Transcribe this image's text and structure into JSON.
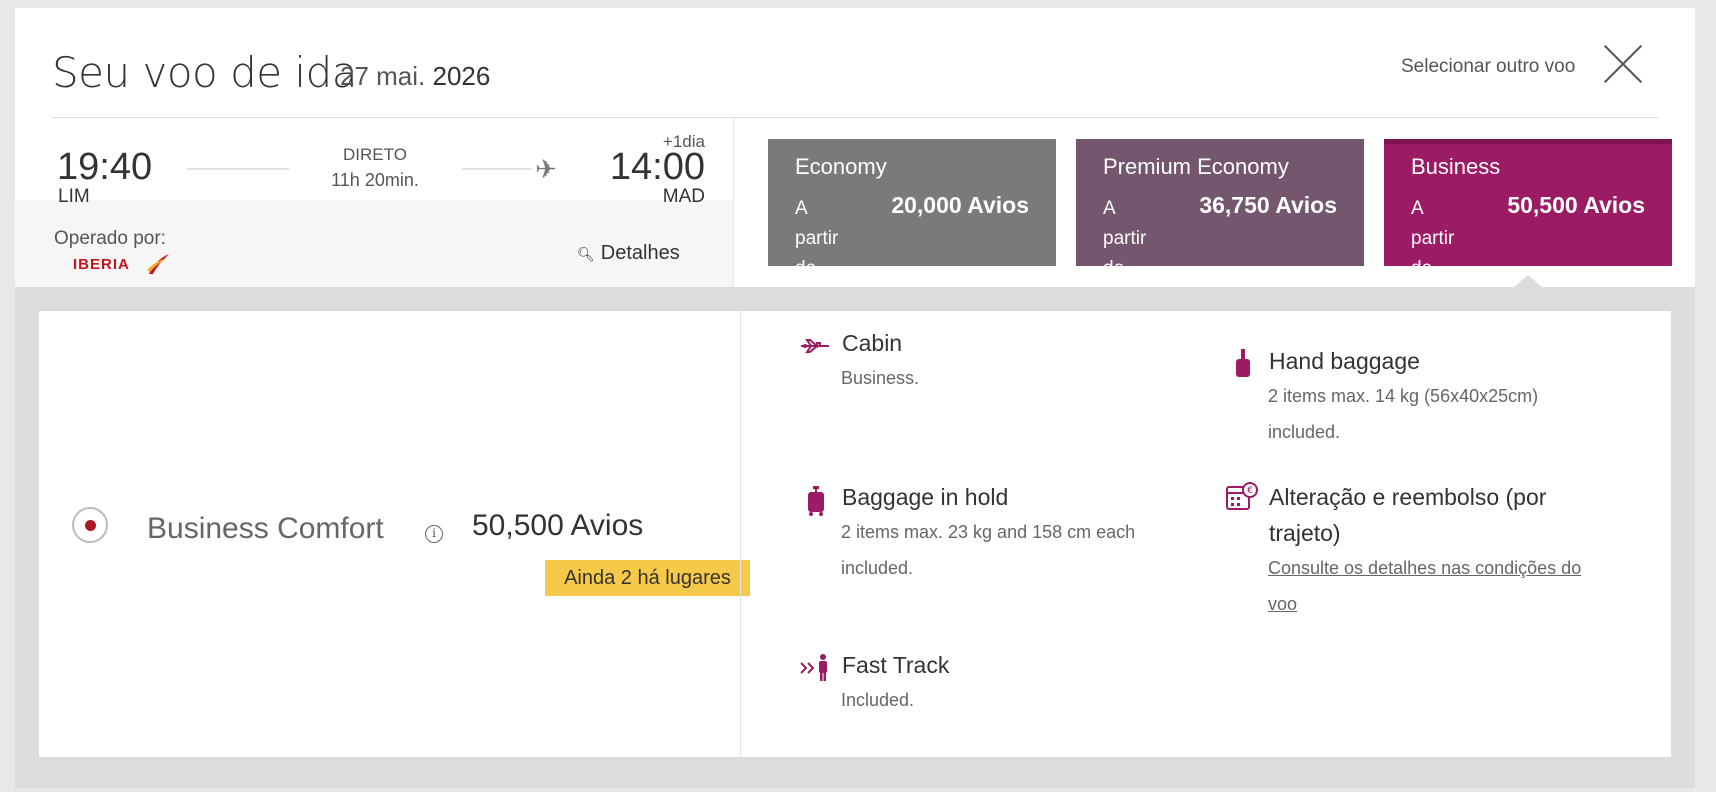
{
  "header": {
    "title": "Seu voo de ida",
    "date_day_month": "27 mai.",
    "date_year": "2026",
    "select_other": "Selecionar outro voo"
  },
  "flight": {
    "departure_time": "19:40",
    "departure_code": "LIM",
    "stop_type": "DIRETO",
    "duration": "11h 20min.",
    "day_offset": "+1dia",
    "arrival_time": "14:00",
    "arrival_code": "MAD",
    "operated_by_label": "Operado por:",
    "airline_logo_text": "IBERIA",
    "details_label": "Detalhes"
  },
  "fares": [
    {
      "name": "Economy",
      "from": "A partir de",
      "price": "20,000 Avios",
      "color": "#7a7a7a"
    },
    {
      "name": "Premium Economy",
      "from": "A partir de",
      "price": "36,750 Avios",
      "color": "#75566f"
    },
    {
      "name": "Business",
      "from": "A partir de",
      "price": "50,500 Avios",
      "color": "#9b1c64",
      "selected": true
    }
  ],
  "selected_fare": {
    "name": "Business Comfort",
    "price": "50,500 Avios",
    "seats_badge": "Ainda 2 há lugares",
    "features": {
      "cabin": {
        "title": "Cabin",
        "desc": "Business."
      },
      "hand_baggage": {
        "title": "Hand baggage",
        "desc_line1": "2 items max. 14 kg (56x40x25cm)",
        "desc_line2": "included."
      },
      "hold_baggage": {
        "title": "Baggage in hold",
        "desc_line1": "2 items max. 23 kg and 158 cm each",
        "desc_line2": "included."
      },
      "change_refund": {
        "title_line1": "Alteração e reembolso (por",
        "title_line2": "trajeto)",
        "link_line1": "Consulte os detalhes nas condições do",
        "link_line2": "voo"
      },
      "fast_track": {
        "title": "Fast Track",
        "desc": "Included."
      }
    }
  },
  "colors": {
    "accent": "#9b1c64",
    "badge": "#f7c948",
    "radio_dot": "#b01621"
  },
  "icons": [
    "close-icon",
    "plane-icon",
    "magnifier-icon",
    "info-icon",
    "airplane-cabin-icon",
    "hand-baggage-icon",
    "hold-baggage-icon",
    "calendar-refund-icon",
    "fast-track-icon"
  ]
}
